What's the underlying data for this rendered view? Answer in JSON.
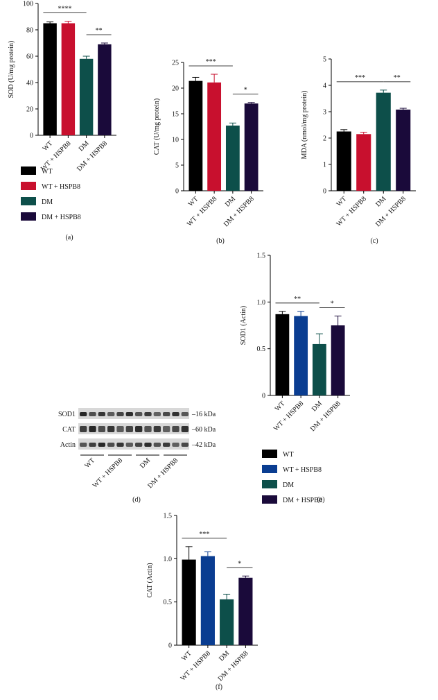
{
  "chart_data": [
    {
      "type": "bar",
      "ylabel": "SOD (U/mg protein)",
      "categories": [
        "WT",
        "WT + HSPB8",
        "DM",
        "DM + HSPB8"
      ],
      "values": [
        85,
        85,
        58,
        69
      ],
      "errors": [
        1,
        1.5,
        2,
        1
      ],
      "colors": [
        "#000000",
        "#c8102e",
        "#0d4f4a",
        "#1a0a3a"
      ],
      "ylim": [
        0,
        100
      ],
      "yticks": [
        0,
        20,
        40,
        60,
        80,
        100
      ],
      "annotations": [
        "****",
        "**"
      ],
      "legend": true,
      "panel_label": "(a)"
    },
    {
      "type": "bar",
      "ylabel": "CAT (U/mg protein)",
      "categories": [
        "WT",
        "WT + HSPB8",
        "DM",
        "DM + HSPB8"
      ],
      "values": [
        21.4,
        21.1,
        12.7,
        17
      ],
      "errors": [
        0.7,
        1.6,
        0.5,
        0.2
      ],
      "colors": [
        "#000000",
        "#c8102e",
        "#0d4f4a",
        "#1a0a3a"
      ],
      "ylim": [
        0,
        25
      ],
      "yticks": [
        0,
        5,
        10,
        15,
        20,
        25
      ],
      "annotations": [
        "***",
        "*"
      ],
      "legend": false,
      "panel_label": "(b)"
    },
    {
      "type": "bar",
      "ylabel": "MDA (nmol/mg protein)",
      "categories": [
        "WT",
        "WT + HSPB8",
        "DM",
        "DM + HSPB8"
      ],
      "values": [
        2.25,
        2.15,
        3.72,
        3.08
      ],
      "errors": [
        0.07,
        0.07,
        0.1,
        0.05
      ],
      "colors": [
        "#000000",
        "#c8102e",
        "#0d4f4a",
        "#1a0a3a"
      ],
      "ylim": [
        0,
        5
      ],
      "yticks": [
        0,
        1,
        2,
        3,
        4,
        5
      ],
      "annotations": [
        "***",
        "**"
      ],
      "legend": false,
      "panel_label": "(c)"
    },
    {
      "type": "bar",
      "ylabel": "SOD1 (Actin)",
      "categories": [
        "WT",
        "WT + HSPB8",
        "DM",
        "DM + HSPB8"
      ],
      "values": [
        0.87,
        0.85,
        0.55,
        0.75
      ],
      "errors": [
        0.03,
        0.05,
        0.11,
        0.1
      ],
      "colors": [
        "#000000",
        "#0a3d91",
        "#0d4f4a",
        "#1a0a3a"
      ],
      "ylim": [
        0,
        1.5
      ],
      "yticks": [
        0,
        0.5,
        {
          "value": 1,
          "label": "1.0"
        },
        1.5
      ],
      "annotations": [
        "**",
        "*"
      ],
      "legend": true,
      "panel_label": "(e)"
    },
    {
      "type": "bar",
      "ylabel": "CAT (Actin)",
      "categories": [
        "WT",
        "WT + HSPB8",
        "DM",
        "DM + HSPB8"
      ],
      "values": [
        0.99,
        1.03,
        0.53,
        0.78
      ],
      "errors": [
        0.15,
        0.05,
        0.06,
        0.02
      ],
      "colors": [
        "#000000",
        "#0a3d91",
        "#0d4f4a",
        "#1a0a3a"
      ],
      "ylim": [
        0,
        1.5
      ],
      "yticks": [
        0,
        0.5,
        {
          "value": 1,
          "label": "1.0"
        },
        1.5
      ],
      "annotations": [
        "***",
        "*"
      ],
      "legend": false,
      "panel_label": "(f)"
    }
  ],
  "blot": {
    "rows": [
      {
        "label": "SOD1",
        "size": "–16 kDa"
      },
      {
        "label": "CAT",
        "size": "–60 kDa"
      },
      {
        "label": "Actin",
        "size": "–42 kDa"
      }
    ],
    "groups": [
      "WT",
      "WT + HSPB8",
      "DM",
      "DM + HSPB8"
    ],
    "panel_label": "(d)"
  }
}
